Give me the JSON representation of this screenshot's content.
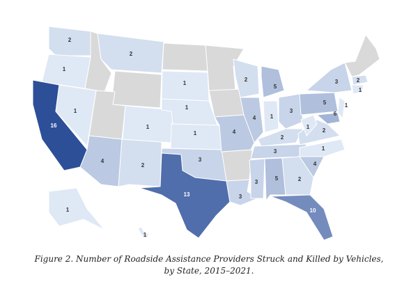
{
  "map": {
    "type": "choropleth",
    "values": [
      2,
      1,
      16,
      1,
      2,
      4,
      1,
      2,
      1,
      1,
      1,
      3,
      13,
      4,
      3,
      2,
      4,
      5,
      1,
      3,
      2,
      3,
      3,
      5,
      2,
      10,
      4,
      1,
      2,
      1,
      5,
      3,
      1,
      6,
      2,
      1,
      1,
      1
    ],
    "colors": [
      "#dfe8f5",
      "#2c4f98"
    ],
    "no_data_color": "#d9d9d9"
  },
  "caption": [
    "Figure 2. Number of Roadside Assistance Providers Struck and Killed by Vehicles,",
    "by State, 2015–2021."
  ]
}
